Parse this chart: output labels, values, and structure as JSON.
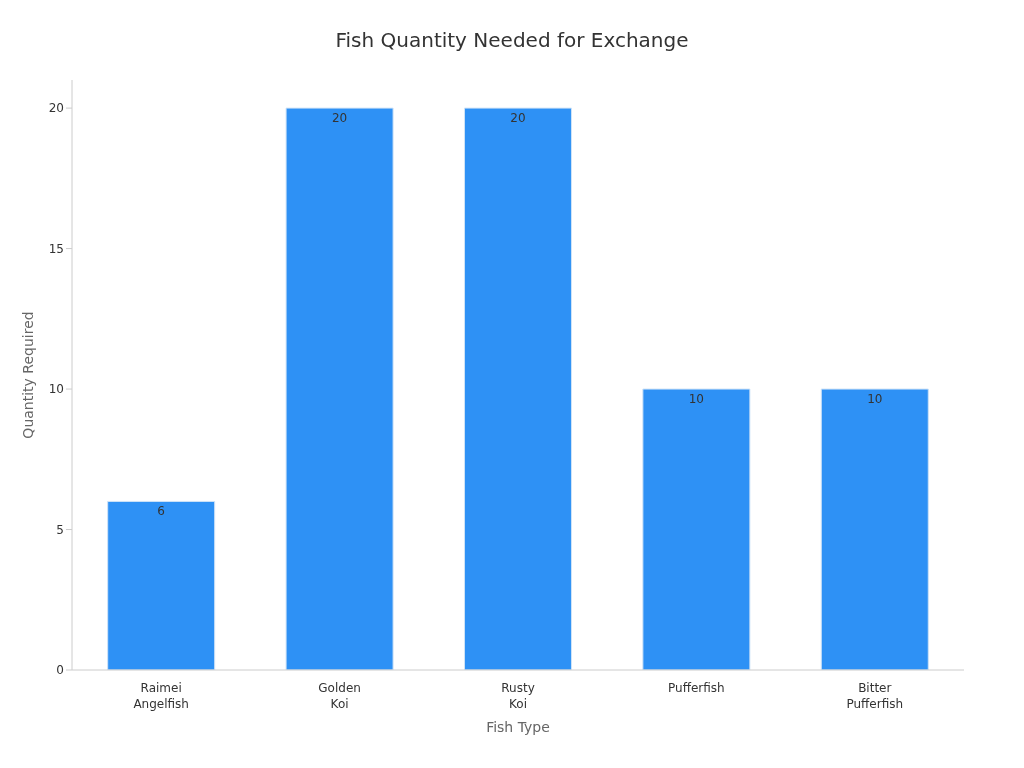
{
  "chart_data": {
    "type": "bar",
    "title": "Fish Quantity Needed for Exchange",
    "xlabel": "Fish Type",
    "ylabel": "Quantity Required",
    "categories": [
      "Raimei Angelfish",
      "Golden Koi",
      "Rusty Koi",
      "Pufferfish",
      "Bitter Pufferfish"
    ],
    "values": [
      6,
      20,
      20,
      10,
      10
    ],
    "color": "#2e91f5",
    "ylim": [
      0,
      21
    ],
    "yticks": [
      0,
      5,
      10,
      15,
      20
    ],
    "grid": false,
    "data_labels": true
  }
}
